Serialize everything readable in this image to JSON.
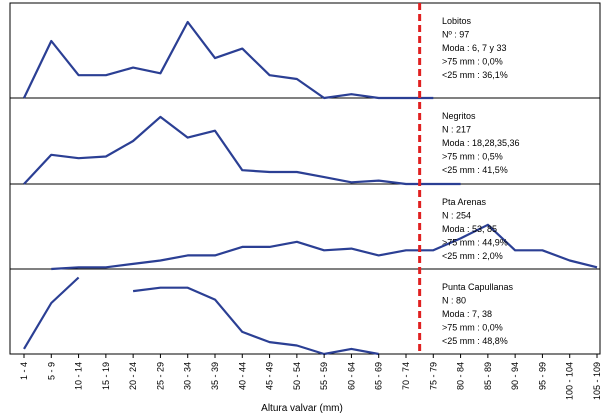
{
  "chart_data": {
    "type": "line",
    "xlabel": "Altura valvar (mm)",
    "categories": [
      "1 - 4",
      "5 - 9",
      "10 - 14",
      "15 - 19",
      "20 - 24",
      "25 - 29",
      "30 - 34",
      "35 - 39",
      "40 - 44",
      "45 - 49",
      "50 - 54",
      "55 - 59",
      "60 - 64",
      "65 - 69",
      "70 - 74",
      "75 - 79",
      "80 - 84",
      "85 - 89",
      "90 - 94",
      "95 - 99",
      "100 - 104",
      "105 - 109"
    ],
    "reference_line": {
      "between": [
        "70 - 74",
        "75 - 79"
      ],
      "color": "#e02020",
      "style": "dashed"
    },
    "series_color": "#2b3f94",
    "panels": [
      {
        "info": [
          "Lobitos",
          "Nº        : 97",
          "Moda      : 6, 7 y 33",
          ">75 mm : 0,0%",
          "<25 mm : 36,1%"
        ],
        "values": [
          0,
          30,
          12,
          12,
          16,
          13,
          40,
          21,
          26,
          12,
          10,
          0,
          2,
          0,
          0,
          0,
          null,
          null,
          null,
          null,
          null,
          null
        ]
      },
      {
        "info": [
          "Negritos",
          "N         : 217",
          "Moda : 18,28,35,36",
          ">75 mm : 0,5%",
          "<25 mm : 41,5%"
        ],
        "values": [
          0,
          17,
          15,
          16,
          25,
          39,
          27,
          31,
          8,
          7,
          7,
          4,
          1,
          2,
          0,
          0,
          0,
          null,
          null,
          null,
          null,
          null
        ]
      },
      {
        "info": [
          "Pta Arenas",
          "N         : 254",
          "Moda      : 53, 85",
          ">75 mm : 44,9%",
          "<25 mm : 2,0%"
        ],
        "values": [
          null,
          0,
          1,
          1,
          3,
          5,
          8,
          8,
          13,
          13,
          16,
          11,
          12,
          8,
          11,
          11,
          18,
          26,
          11,
          11,
          5,
          1
        ]
      },
      {
        "info": [
          "Punta Capullanas",
          "N         : 80",
          "Moda      : 7, 38",
          ">75 mm : 0,0%",
          "<25 mm : 48,8%"
        ],
        "values": [
          3,
          30,
          45,
          null,
          37,
          39,
          39,
          32,
          13,
          7,
          5,
          0,
          3,
          0,
          null,
          null,
          null,
          null,
          null,
          null,
          null,
          null
        ]
      }
    ]
  }
}
